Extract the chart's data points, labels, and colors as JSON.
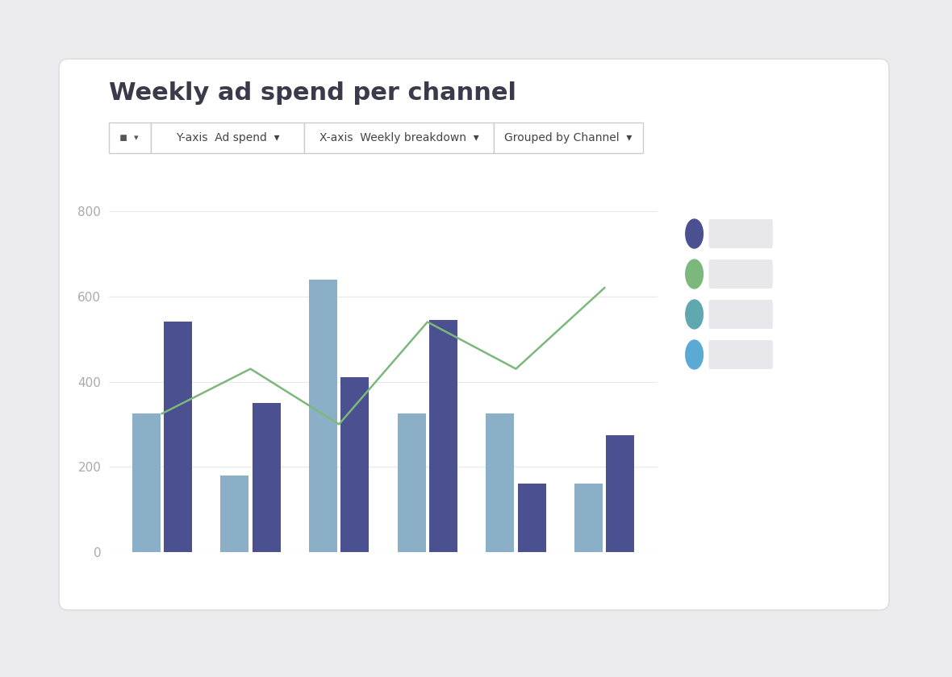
{
  "title": "Weekly ad spend per channel",
  "bar_groups": [
    {
      "light": 325,
      "dark": 540
    },
    {
      "light": 180,
      "dark": 350
    },
    {
      "light": 640,
      "dark": 410
    },
    {
      "light": 325,
      "dark": 545
    },
    {
      "light": 325,
      "dark": 160
    },
    {
      "light": 160,
      "dark": 275
    }
  ],
  "line_values": [
    325,
    430,
    300,
    540,
    430,
    620
  ],
  "bar_color_light": "#8aafc7",
  "bar_color_dark": "#4a5090",
  "line_color": "#7cb87c",
  "yticks": [
    0,
    200,
    400,
    600,
    800
  ],
  "ylim": [
    0,
    870
  ],
  "legend_colors": [
    "#4a5090",
    "#7cb87c",
    "#5fa8b0",
    "#5baad4"
  ],
  "background_outer": "#ebebee",
  "background_card": "#ffffff",
  "text_color_title": "#3a3a4a",
  "text_color_axis": "#aaaaaa",
  "grid_color": "#e8e8e8",
  "card_edge_color": "#dedede"
}
